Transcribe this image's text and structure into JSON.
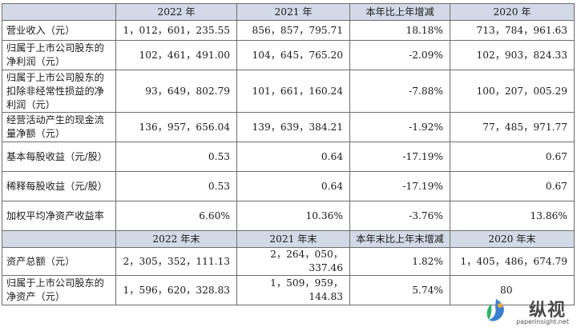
{
  "header1": {
    "c1": "2022 年",
    "c2": "2021 年",
    "c3": "本年比上年增减",
    "c4": "2020 年"
  },
  "rows1": [
    {
      "label": "营业收入（元）",
      "v1": "1，012，601，235.55",
      "v2": "856，857，795.71",
      "v3": "18.18%",
      "v4": "713，784，961.63"
    },
    {
      "label": "归属于上市公司股东的净利润（元）",
      "v1": "102，461，491.00",
      "v2": "104，645，765.20",
      "v3": "-2.09%",
      "v4": "102，903，824.33"
    },
    {
      "label": "归属于上市公司股东的扣除非经常性损益的净利润（元）",
      "v1": "93，649，802.79",
      "v2": "101，661，160.24",
      "v3": "-7.88%",
      "v4": "100，207，005.29"
    },
    {
      "label": "经营活动产生的现金流量净额（元）",
      "v1": "136，957，656.04",
      "v2": "139，639，384.21",
      "v3": "-1.92%",
      "v4": "77，485，971.77"
    },
    {
      "label": "基本每股收益（元/股）",
      "v1": "0.53",
      "v2": "0.64",
      "v3": "-17.19%",
      "v4": "0.67"
    },
    {
      "label": "稀释每股收益（元/股）",
      "v1": "0.53",
      "v2": "0.64",
      "v3": "-17.19%",
      "v4": "0.67"
    },
    {
      "label": "加权平均净资产收益率",
      "v1": "6.60%",
      "v2": "10.36%",
      "v3": "-3.76%",
      "v4": "13.86%"
    }
  ],
  "header2": {
    "c1": "2022 年末",
    "c2": "2021 年末",
    "c3": "本年末比上年末增减",
    "c4": "2020 年末"
  },
  "rows2": [
    {
      "label": "资产总额（元）",
      "v1": "2，305，352，111.13",
      "v2": "2，264，050，337.46",
      "v3": "1.82%",
      "v4": "1，405，486，674.79"
    },
    {
      "label": "归属于上市公司股东的净资产（元）",
      "v1": "1，596，620，328.83",
      "v2": "1，509，959，144.83",
      "v3": "5.74%",
      "v4": "80"
    }
  ],
  "watermark": {
    "name": "纵视",
    "site": "paperinsight.net"
  }
}
